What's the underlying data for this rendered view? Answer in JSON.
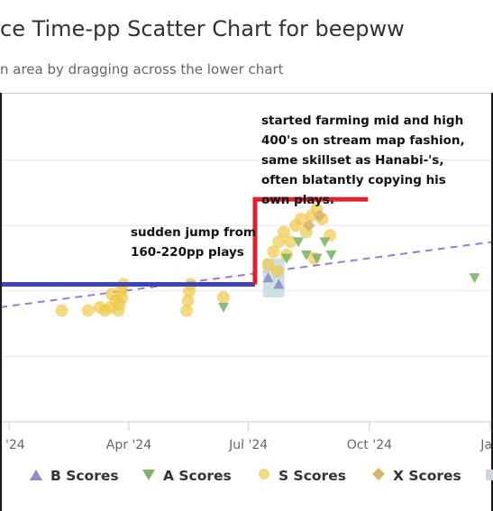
{
  "title": "ce Time-pp Scatter Chart for beepww",
  "subtitle": "n area by dragging across the lower chart",
  "annotations": {
    "jump": "sudden jump from\n160-220pp plays",
    "farming": "started farming mid and high\n400's on stream map fashion,\nsame skillset as Hanabi-'s,\noften blatantly copying his\nown plays."
  },
  "colors": {
    "b_scores": "#8c8cc7",
    "a_scores": "#7db56b",
    "s_scores": "#f0c94a",
    "x_scores": "#d8b56a",
    "blue_line": "#3a44b8",
    "red_line": "#e0202a",
    "trend": "#a078d8"
  },
  "legend": [
    {
      "name": "B Scores",
      "icon": "triangle-up-icon",
      "color": "#8c8cc7"
    },
    {
      "name": "A Scores",
      "icon": "triangle-down-icon",
      "color": "#7db56b"
    },
    {
      "name": "S Scores",
      "icon": "circle-icon",
      "color": "#f0c94a"
    },
    {
      "name": "X Scores",
      "icon": "diamond-icon",
      "color": "#d8b56a"
    }
  ],
  "chart_data": {
    "type": "scatter",
    "xlim": [
      "2023-12-25",
      "2025-01-03"
    ],
    "x_ticks": [
      {
        "label": "n '24",
        "date": "2024-01-01"
      },
      {
        "label": "Apr '24",
        "date": "2024-04-01"
      },
      {
        "label": "Jul '24",
        "date": "2024-07-01"
      },
      {
        "label": "Oct '24",
        "date": "2024-10-01"
      },
      {
        "label": "Jan",
        "date": "2025-01-01"
      }
    ],
    "ylim": [
      0,
      100
    ],
    "y_gridlines": [
      20,
      40,
      60,
      80
    ],
    "grid": true,
    "legend_position": "bottom",
    "series": [
      {
        "name": "S Scores",
        "marker": "circle",
        "points": [
          [
            "2024-02-10",
            34
          ],
          [
            "2024-03-01",
            34
          ],
          [
            "2024-03-10",
            35
          ],
          [
            "2024-03-14",
            34
          ],
          [
            "2024-03-18",
            35
          ],
          [
            "2024-03-22",
            37
          ],
          [
            "2024-03-25",
            36
          ],
          [
            "2024-03-26",
            40
          ],
          [
            "2024-03-27",
            38
          ],
          [
            "2024-03-28",
            42
          ],
          [
            "2024-03-19",
            39
          ],
          [
            "2024-03-24",
            34
          ],
          [
            "2024-05-15",
            34
          ],
          [
            "2024-05-16",
            37
          ],
          [
            "2024-05-17",
            40
          ],
          [
            "2024-05-18",
            42
          ],
          [
            "2024-06-12",
            38
          ],
          [
            "2024-07-16",
            48
          ],
          [
            "2024-07-20",
            52
          ],
          [
            "2024-07-24",
            55
          ],
          [
            "2024-07-28",
            58
          ],
          [
            "2024-07-30",
            51
          ],
          [
            "2024-08-02",
            55
          ],
          [
            "2024-08-06",
            60
          ],
          [
            "2024-08-10",
            62
          ],
          [
            "2024-08-14",
            58
          ],
          [
            "2024-08-18",
            63
          ],
          [
            "2024-08-22",
            65
          ],
          [
            "2024-08-26",
            62
          ],
          [
            "2024-09-01",
            57
          ],
          [
            "2024-08-20",
            50
          ],
          [
            "2024-07-23",
            46
          ]
        ]
      },
      {
        "name": "A Scores",
        "marker": "triangle-down",
        "points": [
          [
            "2024-06-12",
            35
          ],
          [
            "2024-07-30",
            50
          ],
          [
            "2024-08-08",
            55
          ],
          [
            "2024-08-14",
            51
          ],
          [
            "2024-08-22",
            50
          ],
          [
            "2024-08-28",
            55
          ],
          [
            "2024-09-02",
            51
          ],
          [
            "2024-12-20",
            44
          ]
        ]
      },
      {
        "name": "X Scores",
        "marker": "diamond",
        "points": [
          [
            "2024-08-16",
            60
          ],
          [
            "2024-08-24",
            63
          ]
        ]
      },
      {
        "name": "B Scores",
        "marker": "triangle-up",
        "points": [
          [
            "2024-07-16",
            44
          ],
          [
            "2024-07-24",
            42
          ]
        ]
      }
    ],
    "trendline": {
      "style": "dashed",
      "from": [
        "2023-12-25",
        35
      ],
      "to": [
        "2025-01-03",
        55
      ]
    },
    "overlays": [
      {
        "type": "blue-line",
        "from": [
          "2023-12-25",
          42
        ],
        "to": [
          "2024-07-06",
          42
        ]
      },
      {
        "type": "red-bracket",
        "from": [
          "2024-07-06",
          42
        ],
        "corner": [
          "2024-07-06",
          68
        ],
        "to": [
          "2024-09-30",
          68
        ]
      }
    ]
  }
}
